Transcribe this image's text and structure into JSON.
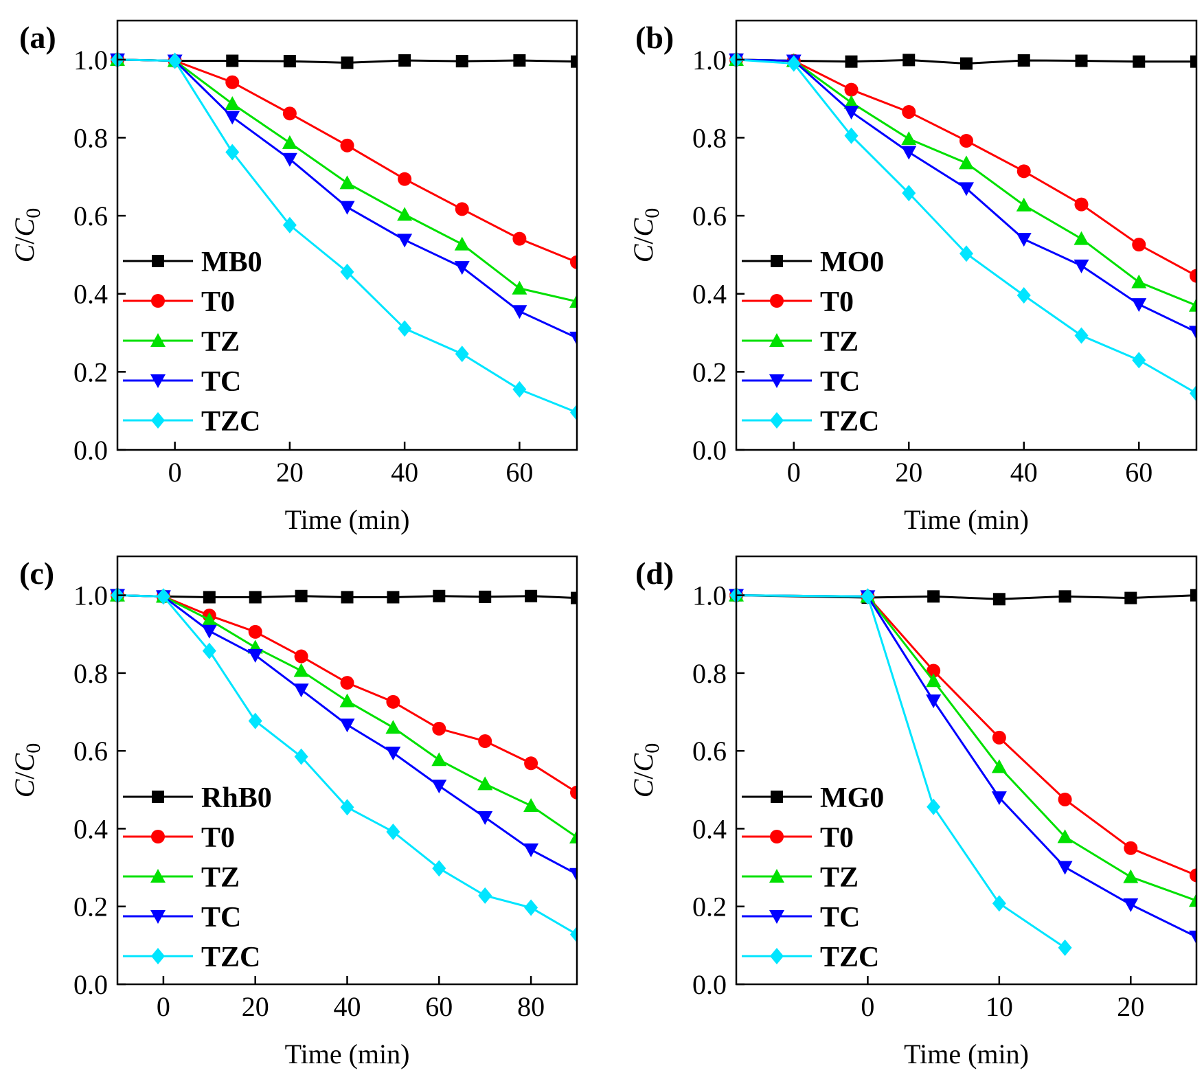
{
  "chart_data": [
    {
      "type": "line",
      "panel_label": "(a)",
      "xlabel": "Time (min)",
      "ylabel": "C/C0",
      "xlim": [
        -10,
        70
      ],
      "ylim": [
        0,
        1.1
      ],
      "xticks": [
        0,
        20,
        40,
        60
      ],
      "yticks": [
        0.0,
        0.2,
        0.4,
        0.6,
        0.8,
        1.0
      ],
      "ytick_labels": [
        "0.0",
        "0.2",
        "0.4",
        "0.6",
        "0.8",
        "1.0"
      ],
      "legend": "center-left",
      "series": [
        {
          "name": "MB0",
          "color": "#000000",
          "marker": "square",
          "x": [
            -10,
            0,
            10,
            20,
            30,
            40,
            50,
            60,
            70
          ],
          "y": [
            1.0,
            0.997,
            0.997,
            0.996,
            0.992,
            0.998,
            0.996,
            0.998,
            0.995
          ]
        },
        {
          "name": "T0",
          "color": "#ff0000",
          "marker": "circle",
          "x": [
            -10,
            0,
            10,
            20,
            30,
            40,
            50,
            60,
            70
          ],
          "y": [
            1.0,
            0.997,
            0.942,
            0.862,
            0.78,
            0.694,
            0.617,
            0.541,
            0.481
          ]
        },
        {
          "name": "TZ",
          "color": "#00e000",
          "marker": "triangle-up",
          "x": [
            -10,
            0,
            10,
            20,
            30,
            40,
            50,
            60,
            70
          ],
          "y": [
            1.0,
            0.997,
            0.887,
            0.787,
            0.684,
            0.603,
            0.527,
            0.414,
            0.38
          ]
        },
        {
          "name": "TC",
          "color": "#0000ff",
          "marker": "triangle-down",
          "x": [
            -10,
            0,
            10,
            20,
            30,
            40,
            50,
            60,
            70
          ],
          "y": [
            1.0,
            0.997,
            0.853,
            0.745,
            0.622,
            0.538,
            0.468,
            0.355,
            0.287
          ]
        },
        {
          "name": "TZC",
          "color": "#00e5ff",
          "marker": "diamond",
          "x": [
            -10,
            0,
            10,
            20,
            30,
            40,
            50,
            60,
            70
          ],
          "y": [
            1.0,
            0.997,
            0.763,
            0.576,
            0.456,
            0.311,
            0.246,
            0.155,
            0.096
          ]
        }
      ]
    },
    {
      "type": "line",
      "panel_label": "(b)",
      "xlabel": "Time (min)",
      "ylabel": "C/C0",
      "xlim": [
        -10,
        70
      ],
      "ylim": [
        0,
        1.1
      ],
      "xticks": [
        0,
        20,
        40,
        60
      ],
      "yticks": [
        0.0,
        0.2,
        0.4,
        0.6,
        0.8,
        1.0
      ],
      "ytick_labels": [
        "0.0",
        "0.2",
        "0.4",
        "0.6",
        "0.8",
        "1.0"
      ],
      "legend": "center-left",
      "series": [
        {
          "name": "MO0",
          "color": "#000000",
          "marker": "square",
          "x": [
            -10,
            0,
            10,
            20,
            30,
            40,
            50,
            60,
            70
          ],
          "y": [
            1.0,
            0.997,
            0.995,
            0.999,
            0.99,
            0.998,
            0.997,
            0.995,
            0.995
          ]
        },
        {
          "name": "T0",
          "color": "#ff0000",
          "marker": "circle",
          "x": [
            -10,
            0,
            10,
            20,
            30,
            40,
            50,
            60,
            70
          ],
          "y": [
            1.0,
            0.997,
            0.923,
            0.866,
            0.792,
            0.714,
            0.629,
            0.526,
            0.446
          ]
        },
        {
          "name": "TZ",
          "color": "#00e000",
          "marker": "triangle-up",
          "x": [
            -10,
            0,
            10,
            20,
            30,
            40,
            50,
            60,
            70
          ],
          "y": [
            1.0,
            0.997,
            0.89,
            0.797,
            0.735,
            0.627,
            0.541,
            0.43,
            0.37
          ]
        },
        {
          "name": "TC",
          "color": "#0000ff",
          "marker": "triangle-down",
          "x": [
            -10,
            0,
            10,
            20,
            30,
            40,
            50,
            60,
            70
          ],
          "y": [
            1.0,
            0.997,
            0.866,
            0.763,
            0.67,
            0.54,
            0.472,
            0.373,
            0.302
          ]
        },
        {
          "name": "TZC",
          "color": "#00e5ff",
          "marker": "diamond",
          "x": [
            -10,
            0,
            10,
            20,
            30,
            40,
            50,
            60,
            70
          ],
          "y": [
            1.0,
            0.99,
            0.805,
            0.658,
            0.503,
            0.396,
            0.293,
            0.23,
            0.145
          ]
        }
      ]
    },
    {
      "type": "line",
      "panel_label": "(c)",
      "xlabel": "Time (min)",
      "ylabel": "C/C0",
      "xlim": [
        -10,
        90
      ],
      "ylim": [
        0,
        1.1
      ],
      "xticks": [
        0,
        20,
        40,
        60,
        80
      ],
      "yticks": [
        0.0,
        0.2,
        0.4,
        0.6,
        0.8,
        1.0
      ],
      "ytick_labels": [
        "0.0",
        "0.2",
        "0.4",
        "0.6",
        "0.8",
        "1.0"
      ],
      "legend": "center-left",
      "series": [
        {
          "name": "RhB0",
          "color": "#000000",
          "marker": "square",
          "x": [
            -10,
            0,
            10,
            20,
            30,
            40,
            50,
            60,
            70,
            80,
            90
          ],
          "y": [
            1.0,
            0.997,
            0.995,
            0.995,
            0.998,
            0.995,
            0.995,
            0.998,
            0.996,
            0.998,
            0.993
          ]
        },
        {
          "name": "T0",
          "color": "#ff0000",
          "marker": "circle",
          "x": [
            -10,
            0,
            10,
            20,
            30,
            40,
            50,
            60,
            70,
            80,
            90
          ],
          "y": [
            1.0,
            0.997,
            0.948,
            0.906,
            0.843,
            0.775,
            0.726,
            0.657,
            0.625,
            0.568,
            0.493
          ]
        },
        {
          "name": "TZ",
          "color": "#00e000",
          "marker": "triangle-up",
          "x": [
            -10,
            0,
            10,
            20,
            30,
            40,
            50,
            60,
            70,
            80,
            90
          ],
          "y": [
            1.0,
            0.997,
            0.937,
            0.866,
            0.806,
            0.728,
            0.66,
            0.577,
            0.515,
            0.459,
            0.378
          ]
        },
        {
          "name": "TC",
          "color": "#0000ff",
          "marker": "triangle-down",
          "x": [
            -10,
            0,
            10,
            20,
            30,
            40,
            50,
            60,
            70,
            80,
            90
          ],
          "y": [
            1.0,
            0.997,
            0.908,
            0.846,
            0.757,
            0.667,
            0.595,
            0.51,
            0.429,
            0.346,
            0.283
          ]
        },
        {
          "name": "TZC",
          "color": "#00e5ff",
          "marker": "diamond",
          "x": [
            -10,
            0,
            10,
            20,
            30,
            40,
            50,
            60,
            70,
            80,
            90
          ],
          "y": [
            1.0,
            0.997,
            0.857,
            0.677,
            0.585,
            0.455,
            0.392,
            0.298,
            0.228,
            0.197,
            0.128
          ]
        }
      ]
    },
    {
      "type": "line",
      "panel_label": "(d)",
      "xlabel": "Time (min)",
      "ylabel": "C/C0",
      "xlim": [
        -10,
        25
      ],
      "ylim": [
        0,
        1.1
      ],
      "xticks": [
        0,
        10,
        20
      ],
      "yticks": [
        0.0,
        0.2,
        0.4,
        0.6,
        0.8,
        1.0
      ],
      "ytick_labels": [
        "0.0",
        "0.2",
        "0.4",
        "0.6",
        "0.8",
        "1.0"
      ],
      "legend": "center-left",
      "series": [
        {
          "name": "MG0",
          "color": "#000000",
          "marker": "square",
          "x": [
            -10,
            0,
            5,
            10,
            15,
            20,
            25
          ],
          "y": [
            1.0,
            0.994,
            0.997,
            0.99,
            0.997,
            0.993,
            1.0
          ]
        },
        {
          "name": "T0",
          "color": "#ff0000",
          "marker": "circle",
          "x": [
            -10,
            0,
            5,
            10,
            15,
            20,
            25
          ],
          "y": [
            1.0,
            0.997,
            0.806,
            0.634,
            0.475,
            0.35,
            0.28
          ]
        },
        {
          "name": "TZ",
          "color": "#00e000",
          "marker": "triangle-up",
          "x": [
            -10,
            0,
            5,
            10,
            15,
            20,
            25
          ],
          "y": [
            1.0,
            0.997,
            0.78,
            0.559,
            0.379,
            0.276,
            0.215
          ]
        },
        {
          "name": "TC",
          "color": "#0000ff",
          "marker": "triangle-down",
          "x": [
            -10,
            0,
            5,
            10,
            15,
            20,
            25
          ],
          "y": [
            1.0,
            0.997,
            0.729,
            0.48,
            0.301,
            0.205,
            0.122
          ]
        },
        {
          "name": "TZC",
          "color": "#00e5ff",
          "marker": "diamond",
          "x": [
            -10,
            0,
            5,
            10,
            15
          ],
          "y": [
            1.0,
            0.997,
            0.456,
            0.208,
            0.094
          ]
        }
      ]
    }
  ]
}
